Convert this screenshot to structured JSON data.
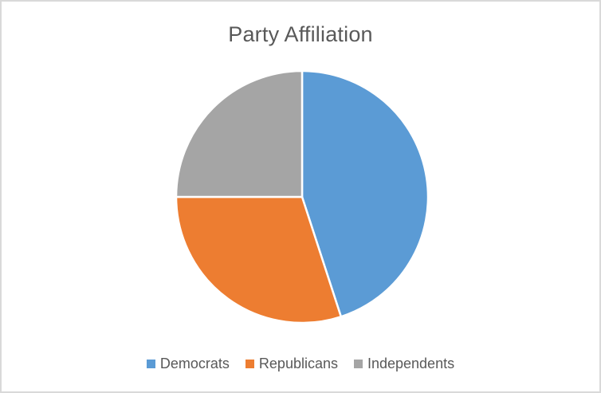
{
  "window": {
    "background_color": "#FFFFFF",
    "border_color": "#D9D9D9"
  },
  "chart_data": {
    "type": "pie",
    "title": "Party Affiliation",
    "categories": [
      "Democrats",
      "Republicans",
      "Independents"
    ],
    "values": [
      45,
      30,
      25
    ],
    "value_unit": "percent-estimated-from-slice-angles",
    "colors": [
      "#5B9BD5",
      "#ED7D31",
      "#A5A5A5"
    ],
    "slice_border_color": "#FFFFFF",
    "text_color": "#595959",
    "legend_position": "bottom",
    "start_angle_deg": 0,
    "direction": "clockwise",
    "data_labels": "none"
  }
}
